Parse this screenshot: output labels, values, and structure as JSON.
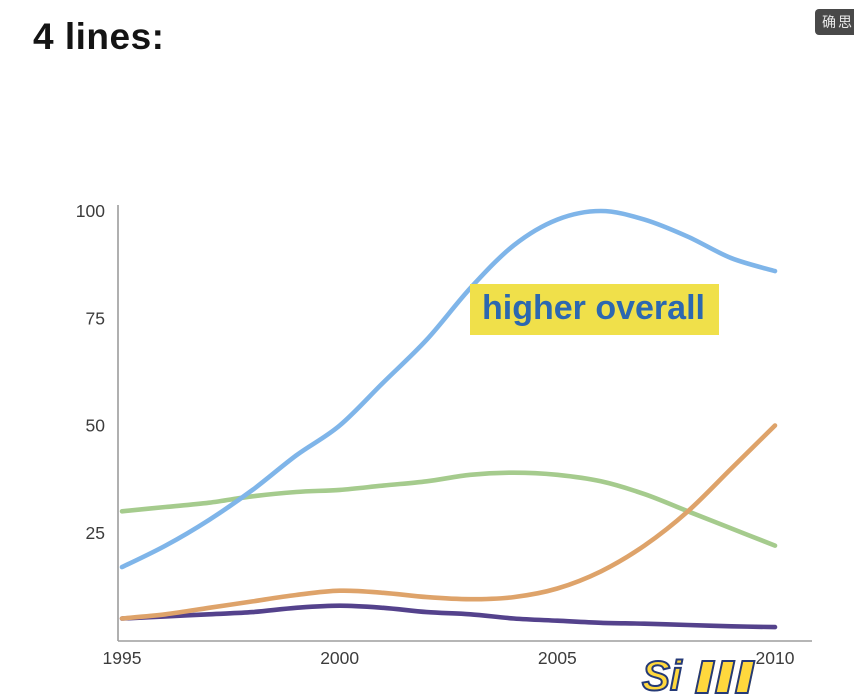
{
  "chart_data": {
    "type": "line",
    "title": "4 lines:",
    "x": [
      1995,
      1996,
      1997,
      1998,
      1999,
      2000,
      2001,
      2002,
      2003,
      2004,
      2005,
      2006,
      2007,
      2008,
      2009,
      2010
    ],
    "series": [
      {
        "name": "green",
        "color": "#a5cb8d",
        "values": [
          30,
          31,
          32,
          33.5,
          34.5,
          35,
          36,
          37,
          38.5,
          39,
          38.5,
          37,
          34,
          30,
          26,
          22
        ]
      },
      {
        "name": "blue",
        "color": "#7fb5e9",
        "values": [
          17,
          22,
          28,
          35,
          43,
          50,
          60,
          70,
          82,
          92,
          98,
          100,
          98,
          94,
          89,
          86
        ]
      },
      {
        "name": "purple",
        "color": "#54428c",
        "values": [
          5,
          5.5,
          6,
          6.5,
          7.5,
          8,
          7.5,
          6.5,
          6,
          5,
          4.5,
          4,
          3.8,
          3.5,
          3.2,
          3
        ]
      },
      {
        "name": "orange",
        "color": "#dea36a",
        "values": [
          5,
          6,
          7.5,
          9,
          10.5,
          11.5,
          11,
          10,
          9.5,
          10,
          12,
          16,
          22,
          30,
          40,
          50
        ]
      }
    ],
    "xticks": [
      1995,
      2000,
      2005,
      2010
    ],
    "yticks": [
      25,
      50,
      75,
      100
    ],
    "xlim": [
      1995,
      2010
    ],
    "ylim": [
      0,
      100
    ],
    "xlabel": "",
    "ylabel": "",
    "grid": false,
    "legend": "none",
    "annotation": {
      "text": "higher overall"
    },
    "axis_color": "#9d9d9d",
    "tick_color": "#3c3c3c"
  },
  "annotation_style": {
    "bg": "#f0e04a",
    "color": "#2c68b0"
  },
  "watermarks": {
    "top_right": "确思",
    "bottom_right": "Si"
  }
}
